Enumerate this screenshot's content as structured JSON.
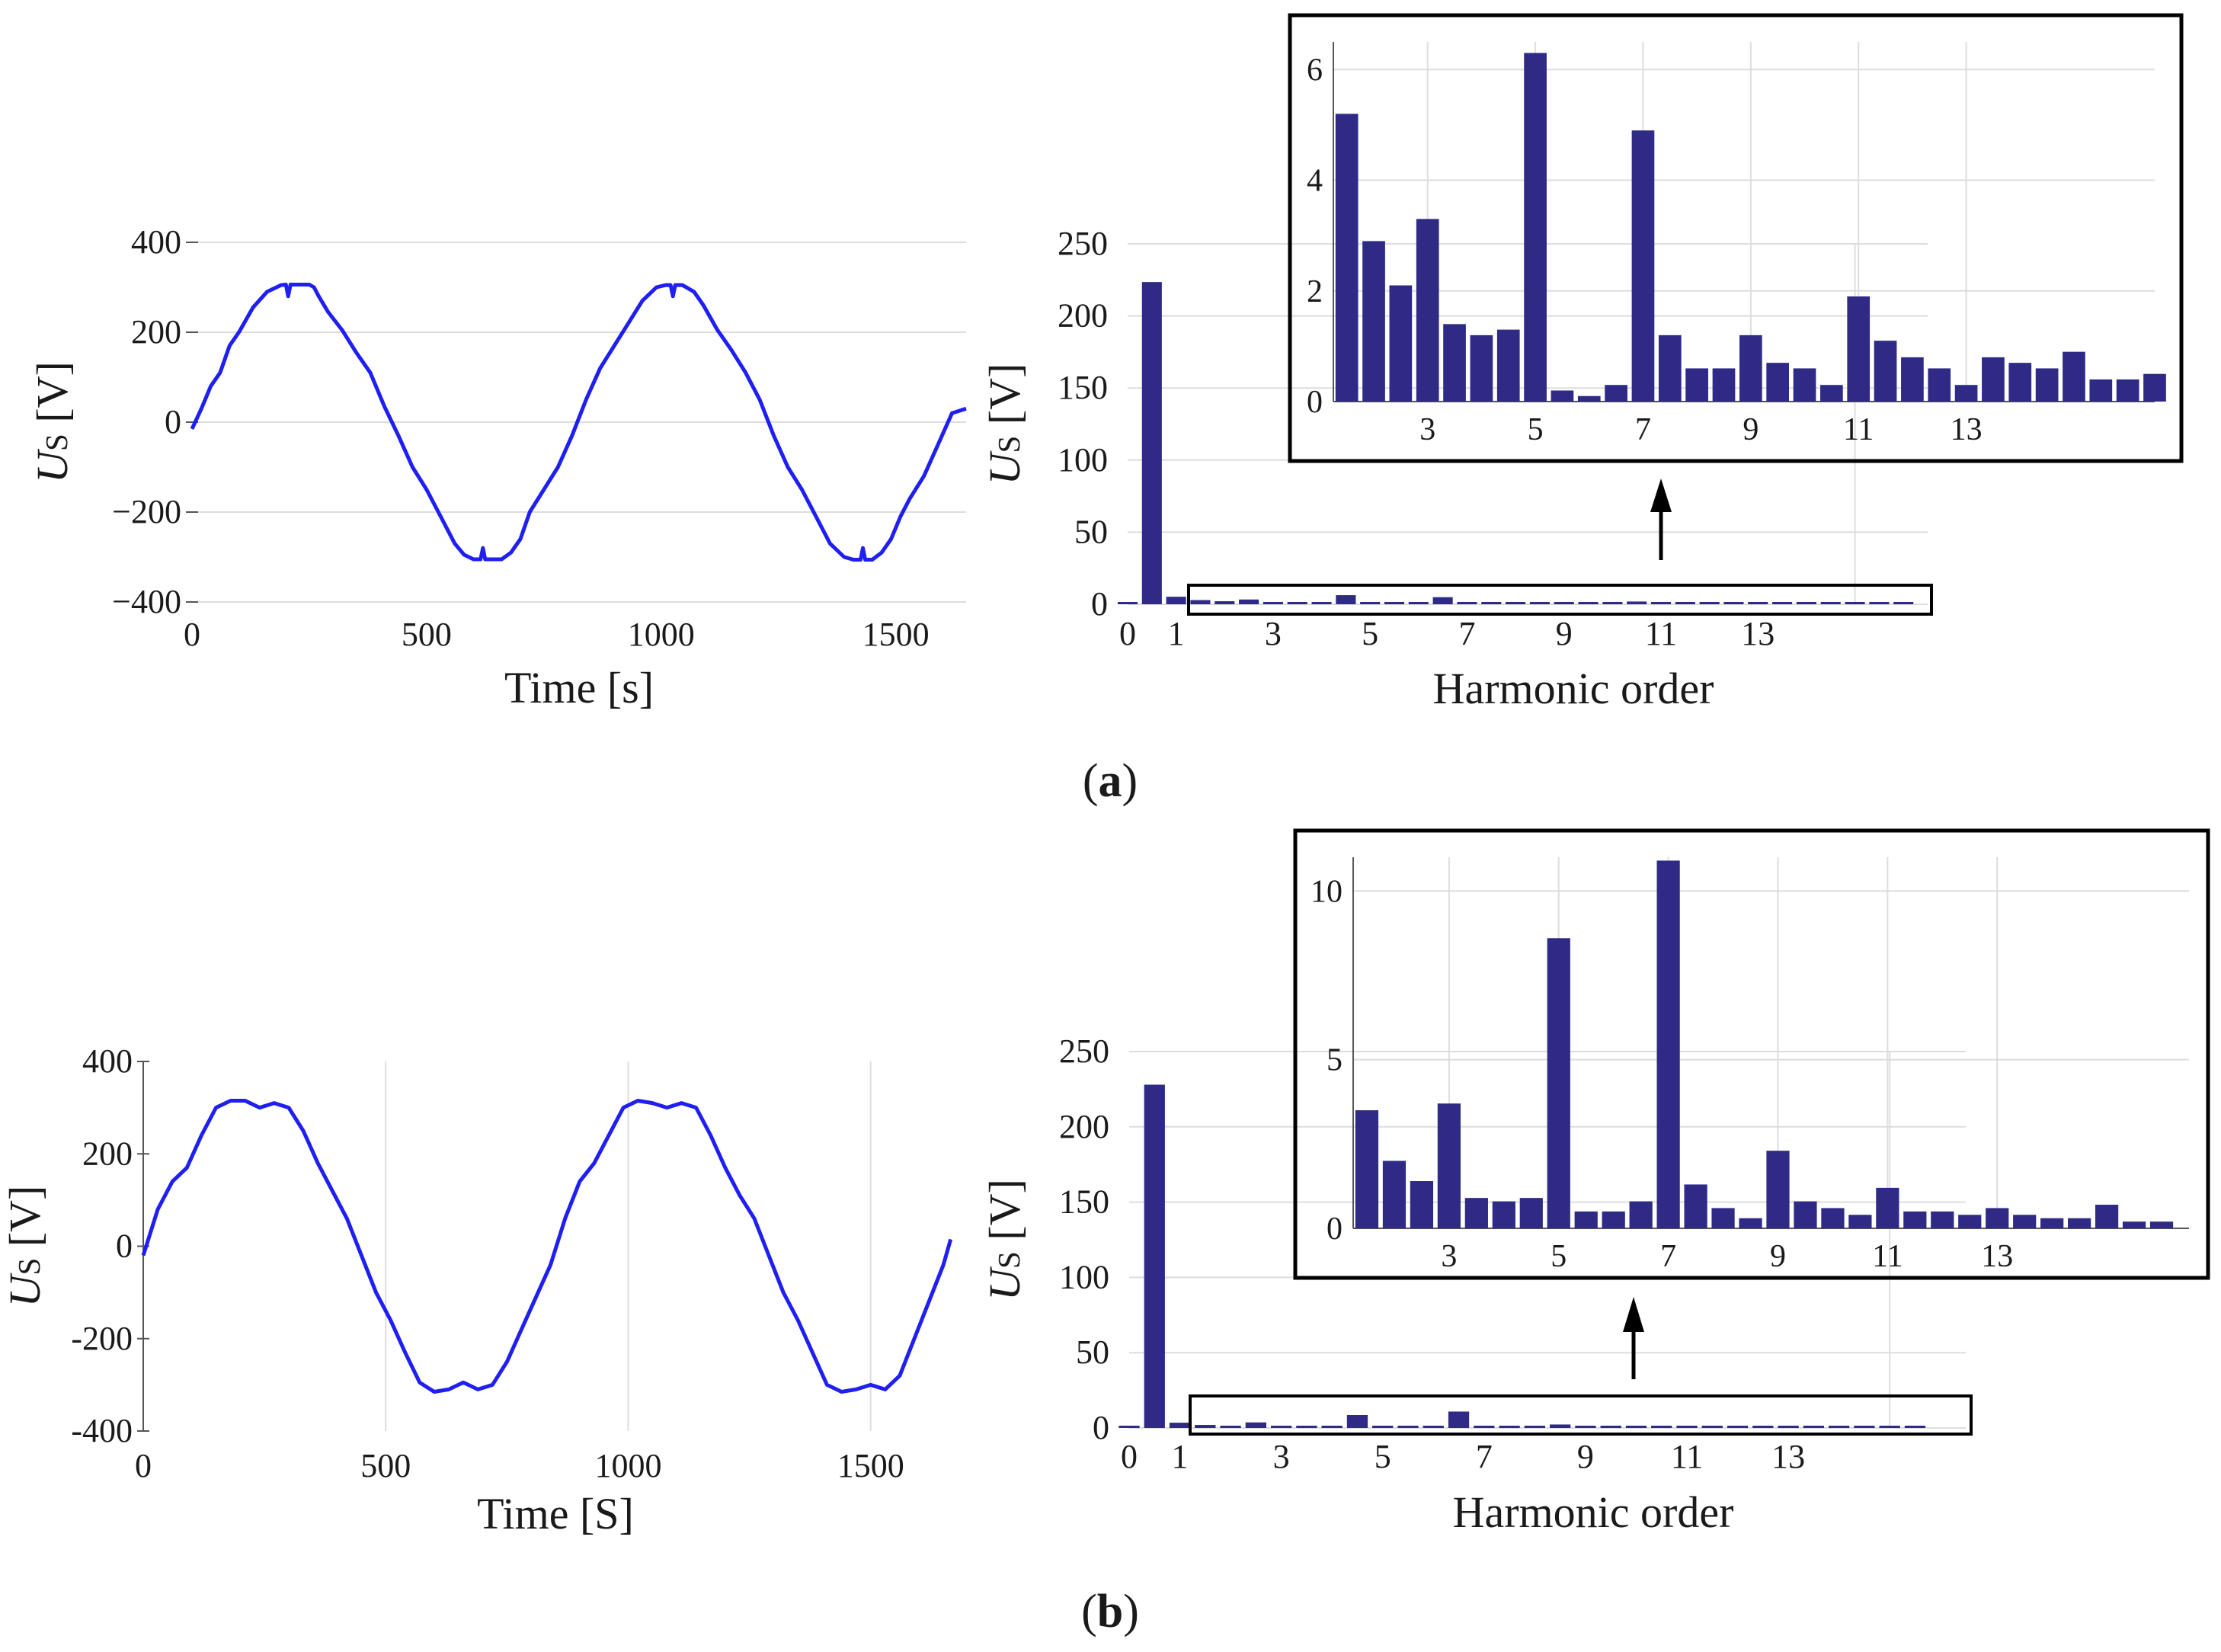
{
  "colors": {
    "wave": "#1f1ff2",
    "bar": "#2e2a86",
    "frame": "#000000"
  },
  "panels": [
    {
      "label_open": "(",
      "label": "a",
      "label_close": ")",
      "chart_data": [
        {
          "type": "line",
          "xlabel": "Time [s]",
          "ylabel": "U_S [V]",
          "ylabel_main": "U",
          "ylabel_sub": "S",
          "ylabel_unit": " [V]",
          "xlim": [
            0,
            1650
          ],
          "ylim": [
            -400,
            400
          ],
          "xticks": [
            0,
            500,
            1000,
            1500
          ],
          "yticks": [
            -400,
            -200,
            0,
            200,
            400
          ],
          "ytick_labels": [
            "−400",
            "−200",
            "0",
            "200",
            "400"
          ],
          "grid": "horizontal",
          "series": [
            {
              "x": [
                0,
                20,
                40,
                60,
                80,
                100,
                130,
                160,
                190,
                200,
                205,
                210,
                215,
                230,
                250,
                260,
                270,
                290,
                320,
                350,
                380,
                410,
                440,
                470,
                500,
                530,
                560,
                580,
                600,
                615,
                620,
                625,
                640,
                660,
                680,
                700,
                720,
                750,
                780,
                810,
                840,
                870,
                900,
                930,
                960,
                990,
                1010,
                1020,
                1025,
                1030,
                1035,
                1045,
                1070,
                1090,
                1120,
                1150,
                1180,
                1210,
                1240,
                1270,
                1300,
                1330,
                1360,
                1390,
                1410,
                1425,
                1430,
                1435,
                1450,
                1470,
                1490,
                1510,
                1530,
                1560,
                1590,
                1620,
                1650
              ],
              "y": [
                -15,
                30,
                80,
                110,
                170,
                200,
                255,
                290,
                305,
                306,
                280,
                306,
                306,
                306,
                306,
                300,
                280,
                245,
                205,
                155,
                110,
                35,
                -30,
                -100,
                -150,
                -210,
                -270,
                -295,
                -305,
                -305,
                -280,
                -305,
                -305,
                -305,
                -290,
                -260,
                -200,
                -150,
                -100,
                -30,
                50,
                120,
                170,
                220,
                270,
                300,
                305,
                305,
                280,
                305,
                305,
                305,
                290,
                260,
                205,
                160,
                110,
                50,
                -30,
                -100,
                -150,
                -210,
                -270,
                -300,
                -306,
                -306,
                -280,
                -306,
                -306,
                -290,
                -260,
                -210,
                -170,
                -120,
                -50,
                20,
                30
              ]
            }
          ]
        },
        {
          "type": "bar",
          "xlabel": "Harmonic order",
          "ylabel": "U_S [V]",
          "ylabel_main": "U",
          "ylabel_sub": "S",
          "ylabel_unit": " [V]",
          "xlim": [
            0,
            16.5
          ],
          "ylim": [
            0,
            250
          ],
          "xticks": [
            0,
            1,
            3,
            5,
            7,
            9,
            11,
            13
          ],
          "yticks": [
            0,
            50,
            100,
            150,
            200,
            250
          ],
          "values": [
            0.8,
            223.5,
            5.2,
            2.9,
            2.1,
            3.3,
            1.4,
            1.2,
            1.3,
            6.3,
            0.2,
            0.1,
            0.3,
            4.9,
            1.2,
            0.6,
            0.6,
            1.2,
            0.7,
            0.6,
            0.3,
            1.9,
            1.1,
            0.8,
            0.6,
            0.3,
            0.8,
            0.7,
            0.6,
            0.9,
            0.4,
            0.4,
            0.5
          ],
          "x_start": 0,
          "x_step": 0.5
        },
        {
          "type": "bar",
          "role": "zoomed inset of harmonics 1.5 to 16",
          "xlim": [
            1.25,
            16.5
          ],
          "ylim": [
            0,
            6.5
          ],
          "xticks": [
            3,
            5,
            7,
            9,
            11,
            13
          ],
          "yticks": [
            0,
            2,
            4,
            6
          ],
          "values": [
            5.2,
            2.9,
            2.1,
            3.3,
            1.4,
            1.2,
            1.3,
            6.3,
            0.2,
            0.1,
            0.3,
            4.9,
            1.2,
            0.6,
            0.6,
            1.2,
            0.7,
            0.6,
            0.3,
            1.9,
            1.1,
            0.8,
            0.6,
            0.3,
            0.8,
            0.7,
            0.6,
            0.9,
            0.4,
            0.4,
            0.5
          ],
          "x_start": 1.5,
          "x_step": 0.5
        }
      ]
    },
    {
      "label_open": "(",
      "label": "b",
      "label_close": ")",
      "chart_data": [
        {
          "type": "line",
          "xlabel": "Time [S]",
          "ylabel": "U_S [V]",
          "ylabel_main": "U",
          "ylabel_sub": "S",
          "ylabel_unit": " [V]",
          "xlim": [
            0,
            1700
          ],
          "ylim": [
            -400,
            400
          ],
          "xticks": [
            0,
            500,
            1000,
            1500
          ],
          "yticks": [
            -400,
            -200,
            0,
            200,
            400
          ],
          "ytick_labels": [
            "-400",
            "-200",
            "0",
            "200",
            "400"
          ],
          "grid": "vertical",
          "series": [
            {
              "x": [
                0,
                30,
                60,
                90,
                120,
                150,
                180,
                210,
                240,
                270,
                300,
                330,
                360,
                390,
                420,
                450,
                480,
                510,
                540,
                570,
                600,
                630,
                660,
                690,
                720,
                750,
                780,
                810,
                840,
                870,
                900,
                930,
                960,
                990,
                1020,
                1050,
                1080,
                1110,
                1140,
                1170,
                1200,
                1230,
                1260,
                1290,
                1320,
                1350,
                1380,
                1410,
                1440,
                1470,
                1500,
                1530,
                1560,
                1590,
                1620,
                1650,
                1665
              ],
              "y": [
                -20,
                80,
                140,
                170,
                240,
                300,
                315,
                315,
                300,
                310,
                300,
                250,
                180,
                120,
                60,
                -20,
                -100,
                -160,
                -230,
                -295,
                -315,
                -310,
                -295,
                -310,
                -300,
                -250,
                -180,
                -110,
                -40,
                60,
                140,
                180,
                240,
                300,
                315,
                310,
                300,
                310,
                300,
                240,
                170,
                110,
                60,
                -20,
                -100,
                -160,
                -230,
                -300,
                -315,
                -310,
                -300,
                -310,
                -280,
                -200,
                -120,
                -40,
                15
              ]
            }
          ]
        },
        {
          "type": "bar",
          "xlabel": "Harmonic order",
          "ylabel": "U_S [V]",
          "ylabel_main": "U",
          "ylabel_sub": "S",
          "ylabel_unit": " [V]",
          "xlim": [
            0,
            16.5
          ],
          "ylim": [
            0,
            250
          ],
          "xticks": [
            0,
            1,
            3,
            5,
            7,
            9,
            11,
            13
          ],
          "yticks": [
            0,
            50,
            100,
            150,
            200,
            250
          ],
          "values": [
            0.8,
            228,
            3.5,
            2.0,
            1.4,
            3.7,
            0.9,
            0.8,
            0.9,
            8.6,
            0.5,
            0.5,
            0.8,
            10.9,
            1.3,
            0.6,
            0.3,
            2.3,
            0.8,
            0.6,
            0.4,
            1.2,
            0.5,
            0.5,
            0.4,
            0.6,
            0.4,
            0.3,
            0.3,
            0.7,
            0.2,
            0.2
          ],
          "x_start": 0,
          "x_step": 0.5
        },
        {
          "type": "bar",
          "role": "zoomed inset of harmonics 1.5 to 16",
          "xlim": [
            1.25,
            16.5
          ],
          "ylim": [
            0,
            11
          ],
          "xticks": [
            3,
            5,
            7,
            9,
            11,
            13
          ],
          "yticks": [
            0,
            5,
            10
          ],
          "values": [
            3.5,
            2.0,
            1.4,
            3.7,
            0.9,
            0.8,
            0.9,
            8.6,
            0.5,
            0.5,
            0.8,
            10.9,
            1.3,
            0.6,
            0.3,
            2.3,
            0.8,
            0.6,
            0.4,
            1.2,
            0.5,
            0.5,
            0.4,
            0.6,
            0.4,
            0.3,
            0.3,
            0.7,
            0.2,
            0.2
          ],
          "x_start": 1.5,
          "x_step": 0.5
        }
      ]
    }
  ]
}
